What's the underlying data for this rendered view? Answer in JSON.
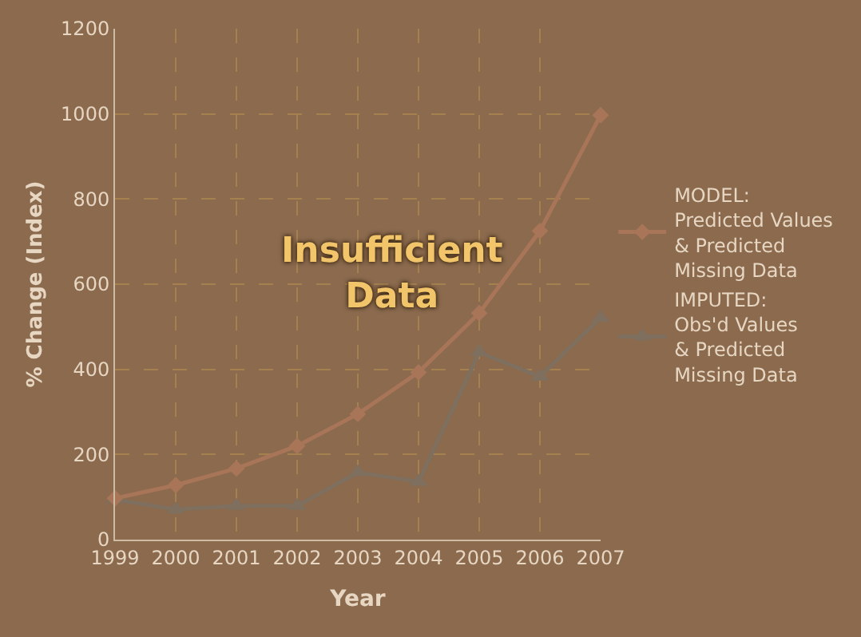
{
  "chart_data": {
    "type": "line",
    "xlabel": "Year",
    "ylabel": "% Change (Index)",
    "annotations": [
      "Insufficient\nData"
    ],
    "categories": [
      "1999",
      "2000",
      "2001",
      "2002",
      "2003",
      "2004",
      "2005",
      "2006",
      "2007"
    ],
    "series": [
      {
        "name": "MODEL:\nPredicted Values\n& Predicted\nMissing Data",
        "color": "#a87558",
        "marker": "diamond",
        "values": [
          97,
          128,
          167,
          220,
          295,
          393,
          532,
          725,
          997
        ]
      },
      {
        "name": "IMPUTED:\nObs'd Values\n& Predicted\nMissing Data",
        "color": "#7f6f5e",
        "marker": "triangle",
        "values": [
          94,
          71,
          79,
          79,
          158,
          136,
          440,
          383,
          521
        ]
      }
    ],
    "ylim": [
      0,
      1200
    ],
    "yticks": [
      0,
      200,
      400,
      600,
      800,
      1000,
      1200
    ],
    "grid": true,
    "legend": "right",
    "line_style": "solid"
  }
}
